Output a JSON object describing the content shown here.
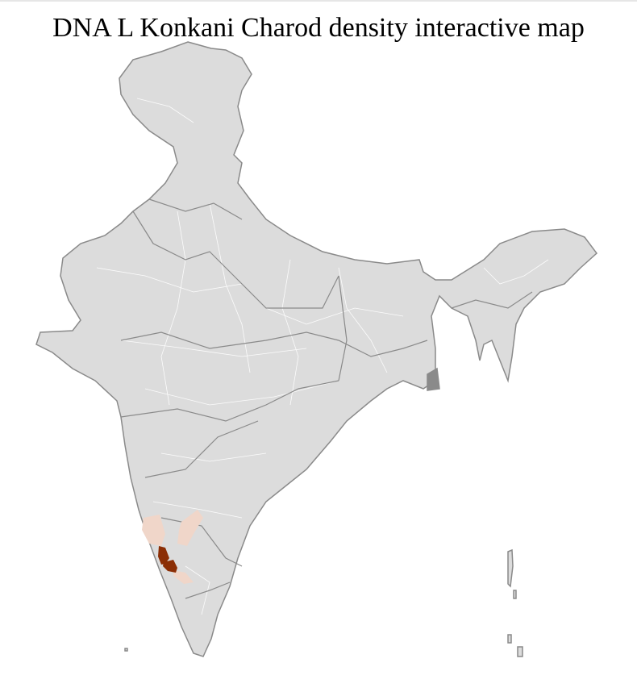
{
  "title": "DNA L Konkani Charod density interactive map",
  "colors": {
    "base_fill": "#dcdcdc",
    "border": "#8a8a8a",
    "district_border": "#ffffff",
    "density_high": "#8b2e05",
    "density_low": "#f0d6c9"
  },
  "highlighted_regions": [
    {
      "level": "high"
    },
    {
      "level": "high"
    },
    {
      "level": "low"
    },
    {
      "level": "low"
    },
    {
      "level": "low"
    }
  ]
}
